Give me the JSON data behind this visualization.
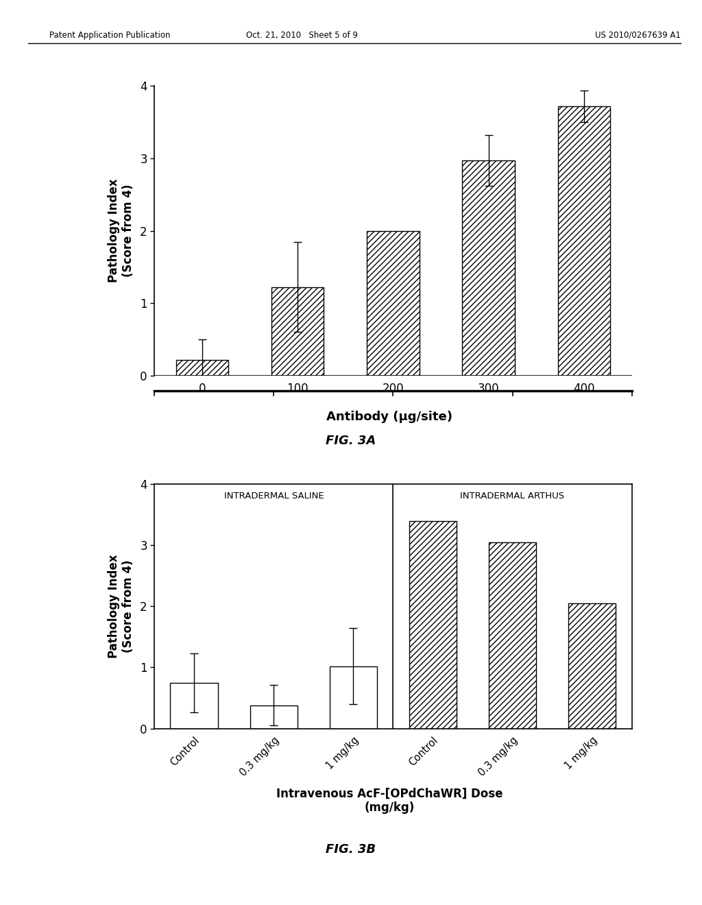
{
  "fig3a": {
    "categories": [
      "0",
      "100",
      "200",
      "300",
      "400"
    ],
    "values": [
      0.22,
      1.22,
      2.0,
      2.97,
      3.72
    ],
    "errors": [
      0.28,
      0.62,
      0.0,
      0.35,
      0.22
    ],
    "ylabel": "Pathology Index\n(Score from 4)",
    "xlabel": "Antibody (μg/site)",
    "ylim": [
      0,
      4
    ],
    "yticks": [
      0,
      1,
      2,
      3,
      4
    ],
    "caption": "FIG. 3A",
    "hatch": "////"
  },
  "fig3b": {
    "categories": [
      "Control",
      "0.3 mg/kg",
      "1 mg/kg",
      "Control",
      "0.3 mg/kg",
      "1 mg/kg"
    ],
    "values": [
      0.75,
      0.38,
      1.02,
      3.4,
      3.05,
      2.05
    ],
    "errors": [
      0.48,
      0.33,
      0.62,
      0.0,
      0.0,
      0.0
    ],
    "hatches": [
      "",
      "",
      "",
      "////",
      "////",
      "////"
    ],
    "group1_label": "INTRADERMAL SALINE",
    "group2_label": "INTRADERMAL ARTHUS",
    "ylabel": "Pathology Index\n(Score from 4)",
    "xlabel": "Intravenous AcF-[OPdChaWR] Dose\n(mg/kg)",
    "ylim": [
      0,
      4
    ],
    "yticks": [
      0,
      1,
      2,
      3,
      4
    ],
    "caption": "FIG. 3B"
  },
  "header_left": "Patent Application Publication",
  "header_mid": "Oct. 21, 2010   Sheet 5 of 9",
  "header_right": "US 2010/0267639 A1",
  "background_color": "#ffffff",
  "bar_edge_color": "#000000",
  "bar_facecolor": "#ffffff",
  "text_color": "#000000"
}
